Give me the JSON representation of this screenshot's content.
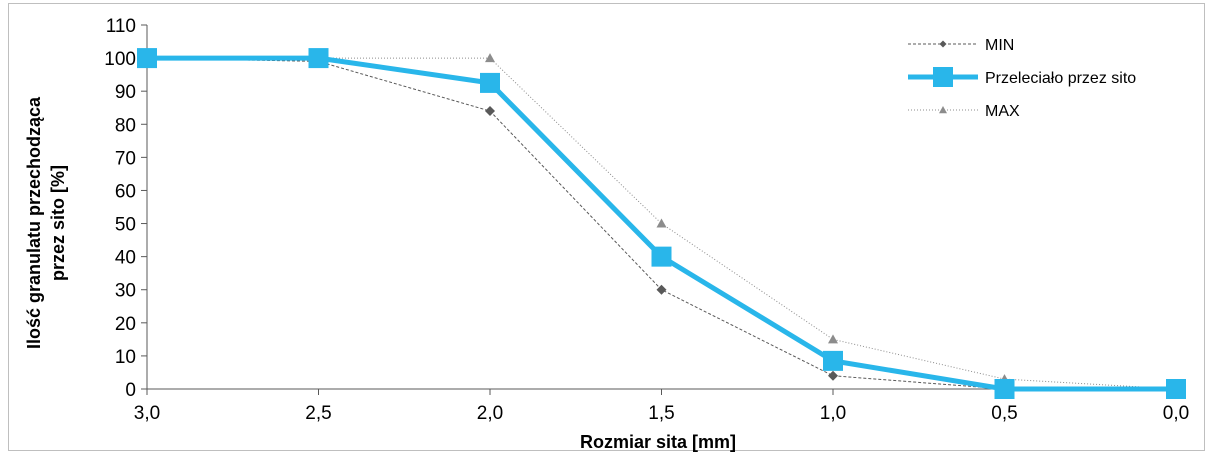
{
  "chart_data": {
    "type": "line",
    "title": "",
    "xlabel": "Rozmiar sita [mm]",
    "ylabel_line1": "Ilość granulatu przechodząca",
    "ylabel_line2": "przez sito [%]",
    "categories": [
      "3,0",
      "2,5",
      "2,0",
      "1,5",
      "1,0",
      "0,5",
      "0,0"
    ],
    "x": [
      3.0,
      2.5,
      2.0,
      1.5,
      1.0,
      0.5,
      0.0
    ],
    "ylim": [
      0,
      110
    ],
    "yticks": [
      "0",
      "10",
      "20",
      "30",
      "40",
      "50",
      "60",
      "70",
      "80",
      "90",
      "100",
      "110"
    ],
    "grid": false,
    "legend_position": "top-right",
    "series": [
      {
        "name": "MIN",
        "values": [
          100,
          99,
          84,
          30,
          4,
          0,
          0
        ],
        "color": "#595959",
        "marker": "diamond",
        "style": "dashed"
      },
      {
        "name": "Przeleciało przez sito",
        "values": [
          100,
          100,
          92.5,
          40,
          8.5,
          0,
          0
        ],
        "color": "#29b6ea",
        "marker": "square",
        "style": "solid"
      },
      {
        "name": "MAX",
        "values": [
          100,
          100,
          100,
          50,
          15,
          3,
          0
        ],
        "color": "#8c8c8c",
        "marker": "triangle",
        "style": "dotted"
      }
    ]
  }
}
